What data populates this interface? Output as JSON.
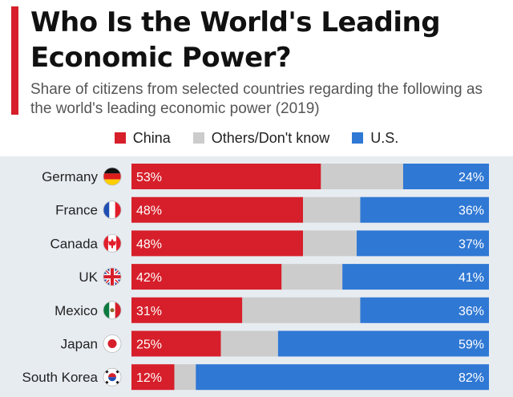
{
  "chart_data": {
    "type": "bar",
    "orientation": "horizontal",
    "stacked": true,
    "title": "Who Is the World's Leading Economic Power?",
    "subtitle": "Share of citizens from selected countries regarding the following as the world's leading economic power (2019)",
    "categories": [
      "Germany",
      "France",
      "Canada",
      "UK",
      "Mexico",
      "Japan",
      "South Korea"
    ],
    "series": [
      {
        "name": "China",
        "color": "#d61f2a",
        "values": [
          53,
          48,
          48,
          42,
          31,
          25,
          12
        ]
      },
      {
        "name": "Others/Don't know",
        "color": "#cccccc",
        "values": [
          23,
          16,
          15,
          17,
          33,
          16,
          6
        ]
      },
      {
        "name": "U.S.",
        "color": "#2f78d4",
        "values": [
          24,
          36,
          37,
          41,
          36,
          59,
          82
        ]
      }
    ],
    "value_labels": {
      "china": [
        "53%",
        "48%",
        "48%",
        "42%",
        "31%",
        "25%",
        "12%"
      ],
      "us": [
        "24%",
        "36%",
        "37%",
        "41%",
        "36%",
        "59%",
        "82%"
      ]
    },
    "legend_position": "top-center",
    "xlim": [
      0,
      100
    ]
  },
  "flag_icons": [
    "germany-flag-icon",
    "france-flag-icon",
    "canada-flag-icon",
    "uk-flag-icon",
    "mexico-flag-icon",
    "japan-flag-icon",
    "south-korea-flag-icon"
  ]
}
